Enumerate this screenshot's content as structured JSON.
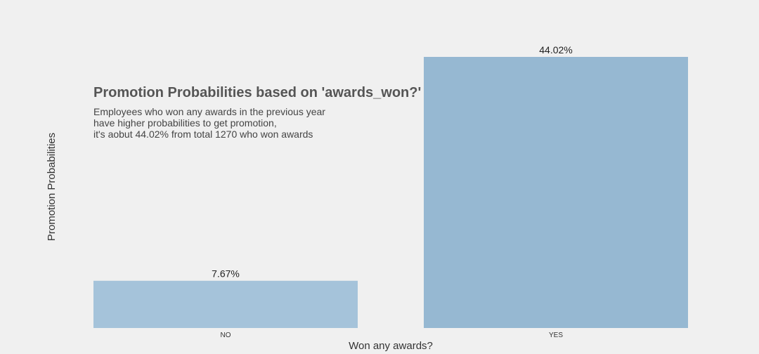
{
  "chart_data": {
    "type": "bar",
    "title": "Promotion Probabilities based on 'awards_won?'",
    "annotation": [
      "Employees who won any awards in the previous year",
      "have higher probabilities to get promotion,",
      "it's aobut 44.02% from total 1270 who won awards"
    ],
    "categories": [
      "NO",
      "YES"
    ],
    "values": [
      7.67,
      44.02
    ],
    "value_labels": [
      "7.67%",
      "44.02%"
    ],
    "colors": [
      "#a5c3da",
      "#96b8d2"
    ],
    "xlabel": "Won any awards?",
    "ylabel": "Promotion Probabilities",
    "ylim": [
      0,
      44.02
    ],
    "grid": false,
    "background": "#f0f0f0"
  }
}
